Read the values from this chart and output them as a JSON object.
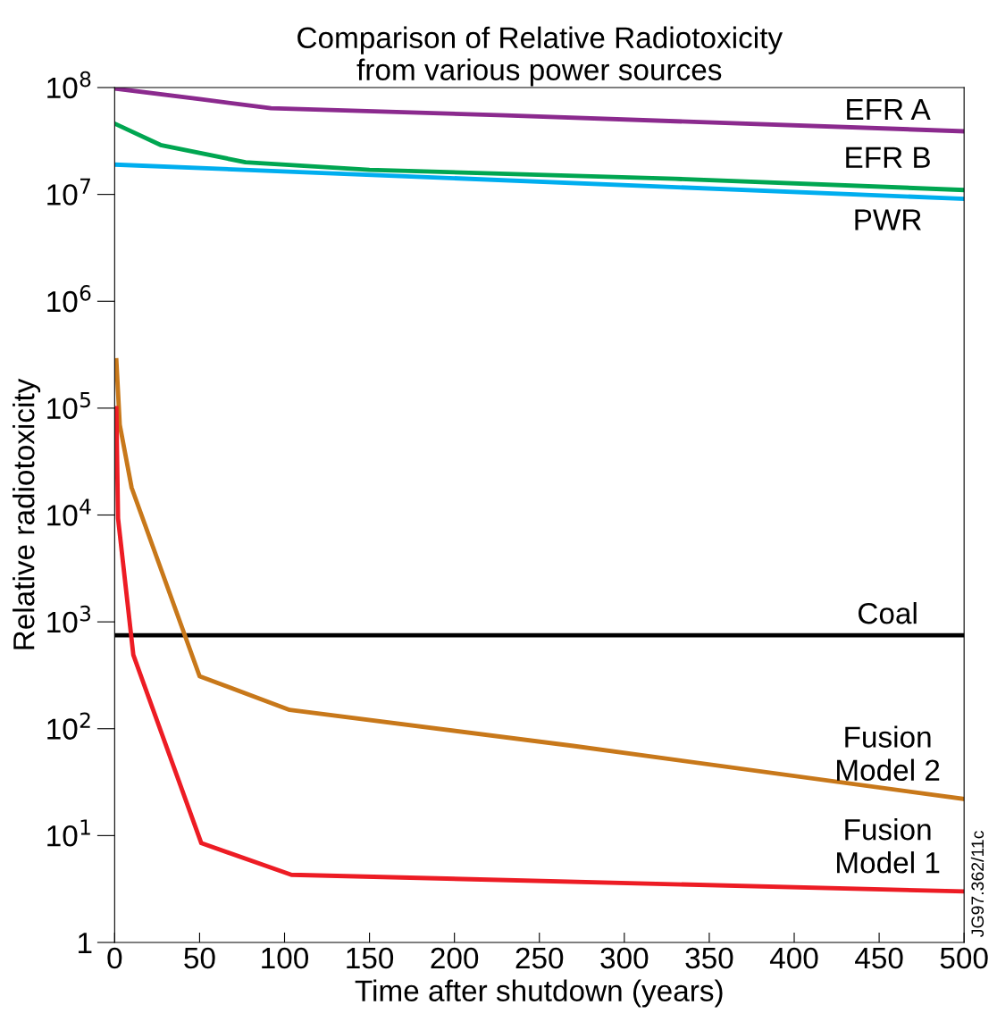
{
  "chart_data": {
    "type": "line",
    "title": "Comparison of Relative Radiotoxicity\nfrom various power sources",
    "xlabel": "Time after shutdown (years)",
    "ylabel": "Relative radiotoxicity",
    "log": "y",
    "grid": false,
    "legend": false,
    "marker": "none",
    "line_style": "solid",
    "xlim": [
      0,
      500
    ],
    "xticks": [
      0,
      50,
      100,
      150,
      200,
      250,
      300,
      350,
      400,
      450,
      500
    ],
    "ylim": [
      1,
      100000000
    ],
    "yticks": [
      1,
      {
        "value": 10,
        "label": "10$^{1}$"
      },
      {
        "value": 100,
        "label": "10$^{2}$"
      },
      {
        "value": 1000,
        "label": "10$^{3}$"
      },
      {
        "value": 10000,
        "label": "10$^{4}$"
      },
      {
        "value": 100000,
        "label": "10$^{5}$"
      },
      {
        "value": 1000000,
        "label": "10$^{6}$"
      },
      {
        "value": 10000000,
        "label": "10$^{7}$"
      },
      {
        "value": 100000000,
        "label": "10$^{8}$"
      }
    ],
    "series": [
      {
        "name": "EFR A",
        "color": "#8b2a8e",
        "x": [
          0,
          50,
          92,
          230,
          500
        ],
        "values": [
          98000000,
          78000000,
          64000000,
          55000000,
          39000000
        ]
      },
      {
        "name": "EFR B",
        "color": "#00a651",
        "x": [
          0,
          27,
          77,
          150,
          330,
          500
        ],
        "values": [
          46000000,
          29000000,
          20000000,
          17000000,
          14000000,
          11000000
        ]
      },
      {
        "name": "PWR",
        "color": "#00aeef",
        "x": [
          0,
          500
        ],
        "values": [
          19000000,
          9100000
        ]
      },
      {
        "name": "Coal",
        "color": "#000000",
        "x": [
          0,
          500
        ],
        "values": [
          750,
          750
        ]
      },
      {
        "name": "Fusion\nModel 2",
        "color": "#c8781a",
        "x": [
          1,
          3,
          10,
          50,
          103,
          270,
          500
        ],
        "values": [
          280000,
          70000,
          18000,
          310,
          150,
          69,
          22
        ]
      },
      {
        "name": "Fusion\nModel 1",
        "color": "#ed1c24",
        "x": [
          1,
          2,
          11,
          51,
          104,
          500
        ],
        "values": [
          100000,
          9300,
          490,
          8.5,
          4.3,
          3.0
        ]
      }
    ],
    "annotations": [
      "JG97.362/11c"
    ]
  }
}
